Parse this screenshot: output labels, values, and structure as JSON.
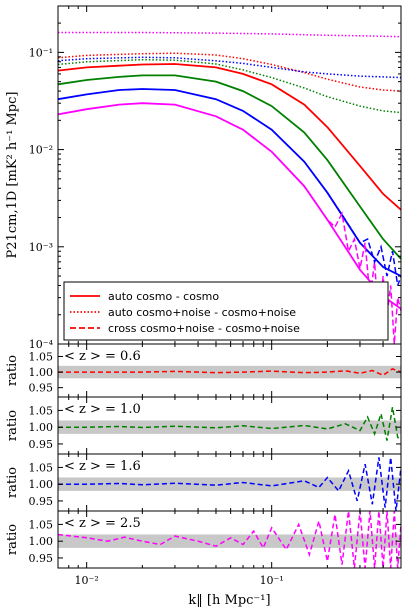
{
  "colors": {
    "red": "#ff0000",
    "green": "#008000",
    "blue": "#0000ff",
    "magenta": "#ff00ff",
    "band": "#c8c8c8"
  },
  "legend": {
    "rows": [
      {
        "style": "solid",
        "color": "#ff0000",
        "text": "auto    cosmo       -       cosmo"
      },
      {
        "style": "dotted",
        "color": "#ff0000",
        "text": "auto  cosmo+noise - cosmo+noise"
      },
      {
        "style": "dashed",
        "color": "#ff0000",
        "text": "cross cosmo+noise - cosmo+noise"
      }
    ]
  },
  "ratio_panels": [
    {
      "annotation": "< z > = 0.6",
      "color": "#ff0000",
      "ylabel": "ratio",
      "yticks": [
        "1.05",
        "1.00",
        "0.95"
      ]
    },
    {
      "annotation": "< z > = 1.0",
      "color": "#008000",
      "ylabel": "ratio",
      "yticks": [
        "1.05",
        "1.00",
        "0.95"
      ]
    },
    {
      "annotation": "< z > = 1.6",
      "color": "#0000ff",
      "ylabel": "ratio",
      "yticks": [
        "1.05",
        "1.00",
        "0.95"
      ]
    },
    {
      "annotation": "< z > = 2.5",
      "color": "#ff00ff",
      "ylabel": "ratio",
      "yticks": [
        "1.05",
        "1.00",
        "0.95"
      ]
    }
  ],
  "chart_data": {
    "type": "line",
    "x_scale": "log",
    "xlim": [
      0.007,
      0.5
    ],
    "xlabel": "k‖ [h Mpc⁻¹]",
    "xticks": [
      "10⁻²",
      "10⁻¹"
    ],
    "main": {
      "y_scale": "log",
      "ylim": [
        0.0001,
        0.3
      ],
      "ylabel": "P21cm,1D [mK² h⁻¹ Mpc]",
      "yticks": [
        "10⁻¹",
        "10⁻²",
        "10⁻³",
        "10⁻⁴"
      ],
      "series": [
        {
          "color": "#ff0000",
          "style": "solid",
          "x": [
            0.007,
            0.01,
            0.015,
            0.02,
            0.03,
            0.05,
            0.07,
            0.1,
            0.15,
            0.2,
            0.3,
            0.4,
            0.5
          ],
          "y": [
            0.065,
            0.07,
            0.073,
            0.075,
            0.076,
            0.07,
            0.06,
            0.047,
            0.029,
            0.017,
            0.0068,
            0.0035,
            0.0024
          ]
        },
        {
          "color": "#008000",
          "style": "solid",
          "x": [
            0.007,
            0.01,
            0.015,
            0.02,
            0.03,
            0.05,
            0.07,
            0.1,
            0.15,
            0.2,
            0.3,
            0.4,
            0.5
          ],
          "y": [
            0.047,
            0.052,
            0.056,
            0.058,
            0.058,
            0.05,
            0.04,
            0.028,
            0.015,
            0.0078,
            0.0026,
            0.0012,
            0.00075
          ]
        },
        {
          "color": "#0000ff",
          "style": "solid",
          "x": [
            0.007,
            0.01,
            0.015,
            0.02,
            0.03,
            0.05,
            0.07,
            0.1,
            0.15,
            0.2,
            0.3,
            0.4,
            0.5
          ],
          "y": [
            0.033,
            0.037,
            0.041,
            0.042,
            0.041,
            0.033,
            0.025,
            0.016,
            0.0075,
            0.0036,
            0.0011,
            0.00062,
            0.0005
          ]
        },
        {
          "color": "#ff00ff",
          "style": "solid",
          "x": [
            0.007,
            0.01,
            0.015,
            0.02,
            0.03,
            0.05,
            0.07,
            0.1,
            0.15,
            0.2,
            0.3,
            0.4,
            0.5
          ],
          "y": [
            0.023,
            0.026,
            0.029,
            0.03,
            0.029,
            0.022,
            0.016,
            0.0095,
            0.0042,
            0.0019,
            0.00058,
            0.00031,
            0.00023
          ]
        },
        {
          "color": "#ff00ff",
          "style": "dotted",
          "x": [
            0.007,
            0.01,
            0.02,
            0.05,
            0.1,
            0.2,
            0.3,
            0.5
          ],
          "y": [
            0.16,
            0.16,
            0.16,
            0.158,
            0.155,
            0.15,
            0.148,
            0.145
          ]
        },
        {
          "color": "#ff0000",
          "style": "dotted",
          "x": [
            0.007,
            0.01,
            0.02,
            0.03,
            0.05,
            0.07,
            0.1,
            0.15,
            0.2,
            0.3,
            0.4,
            0.5
          ],
          "y": [
            0.088,
            0.093,
            0.097,
            0.098,
            0.094,
            0.086,
            0.075,
            0.062,
            0.053,
            0.044,
            0.041,
            0.04
          ]
        },
        {
          "color": "#0000ff",
          "style": "dotted",
          "x": [
            0.007,
            0.01,
            0.02,
            0.03,
            0.05,
            0.07,
            0.1,
            0.15,
            0.2,
            0.3,
            0.4,
            0.5
          ],
          "y": [
            0.082,
            0.086,
            0.089,
            0.088,
            0.082,
            0.077,
            0.07,
            0.063,
            0.06,
            0.057,
            0.056,
            0.055
          ]
        },
        {
          "color": "#008000",
          "style": "dotted",
          "x": [
            0.007,
            0.01,
            0.02,
            0.03,
            0.05,
            0.07,
            0.1,
            0.15,
            0.2,
            0.3,
            0.4,
            0.5
          ],
          "y": [
            0.075,
            0.08,
            0.084,
            0.083,
            0.076,
            0.066,
            0.055,
            0.043,
            0.035,
            0.028,
            0.025,
            0.024
          ]
        },
        {
          "color": "#ff00ff",
          "style": "dashed",
          "x": [
            0.1,
            0.15,
            0.2,
            0.22,
            0.24,
            0.26,
            0.28,
            0.3,
            0.32,
            0.34,
            0.36,
            0.38,
            0.4,
            0.42,
            0.44,
            0.46,
            0.48,
            0.5
          ],
          "y": [
            0.0095,
            0.0042,
            0.0019,
            0.0016,
            0.0022,
            0.0009,
            0.0012,
            0.0006,
            0.0011,
            0.0003,
            0.0007,
            0.00015,
            0.0005,
            0.0002,
            0.0004,
            0.0001,
            0.0003,
            0.00022
          ]
        },
        {
          "color": "#0000ff",
          "style": "dashed",
          "x": [
            0.2,
            0.25,
            0.3,
            0.33,
            0.36,
            0.39,
            0.42,
            0.45,
            0.48,
            0.5
          ],
          "y": [
            0.0036,
            0.0019,
            0.0011,
            0.0012,
            0.0007,
            0.001,
            0.0005,
            0.0009,
            0.0004,
            0.0005
          ]
        }
      ]
    },
    "ratio_ylim": [
      0.92,
      1.09
    ],
    "ratio_band": [
      0.98,
      1.02
    ],
    "ratio_series": [
      {
        "color": "#ff0000",
        "x": [
          0.007,
          0.01,
          0.015,
          0.02,
          0.03,
          0.05,
          0.07,
          0.1,
          0.15,
          0.2,
          0.25,
          0.3,
          0.35,
          0.4,
          0.45,
          0.5
        ],
        "y": [
          1.0,
          1.0,
          1.0,
          1.0,
          1.002,
          0.998,
          1.0,
          1.003,
          0.998,
          1.0,
          1.004,
          0.996,
          1.005,
          0.99,
          1.01,
          1.0
        ]
      },
      {
        "color": "#008000",
        "x": [
          0.007,
          0.01,
          0.015,
          0.02,
          0.03,
          0.05,
          0.07,
          0.1,
          0.15,
          0.2,
          0.25,
          0.3,
          0.33,
          0.36,
          0.39,
          0.42,
          0.45,
          0.48,
          0.5
        ],
        "y": [
          1.0,
          1.0,
          1.002,
          0.999,
          1.003,
          0.998,
          1.004,
          0.996,
          1.005,
          0.995,
          1.01,
          0.99,
          1.03,
          0.98,
          1.04,
          0.96,
          1.06,
          0.97,
          0.96
        ]
      },
      {
        "color": "#0000ff",
        "x": [
          0.007,
          0.01,
          0.015,
          0.02,
          0.03,
          0.05,
          0.07,
          0.1,
          0.15,
          0.18,
          0.2,
          0.23,
          0.26,
          0.29,
          0.32,
          0.35,
          0.38,
          0.41,
          0.44,
          0.47,
          0.5
        ],
        "y": [
          1.0,
          1.0,
          1.002,
          0.998,
          1.003,
          0.997,
          1.005,
          0.995,
          1.01,
          0.99,
          1.02,
          0.98,
          1.04,
          0.95,
          1.06,
          0.94,
          1.08,
          0.93,
          1.08,
          0.92,
          1.05
        ]
      },
      {
        "color": "#ff00ff",
        "x": [
          0.007,
          0.01,
          0.013,
          0.016,
          0.02,
          0.025,
          0.03,
          0.04,
          0.05,
          0.06,
          0.07,
          0.08,
          0.09,
          0.1,
          0.12,
          0.14,
          0.16,
          0.18,
          0.2,
          0.22,
          0.24,
          0.26,
          0.28,
          0.3,
          0.32,
          0.34,
          0.36,
          0.38,
          0.4,
          0.42,
          0.44,
          0.46,
          0.48,
          0.5
        ],
        "y": [
          1.02,
          1.01,
          1.0,
          1.012,
          1.0,
          0.99,
          1.015,
          1.0,
          0.985,
          1.01,
          0.99,
          1.03,
          0.98,
          1.04,
          0.975,
          1.05,
          0.96,
          1.06,
          0.94,
          1.08,
          0.93,
          1.09,
          0.92,
          1.09,
          0.92,
          1.09,
          0.92,
          1.09,
          0.92,
          1.09,
          0.92,
          1.09,
          0.92,
          1.05
        ]
      }
    ]
  }
}
